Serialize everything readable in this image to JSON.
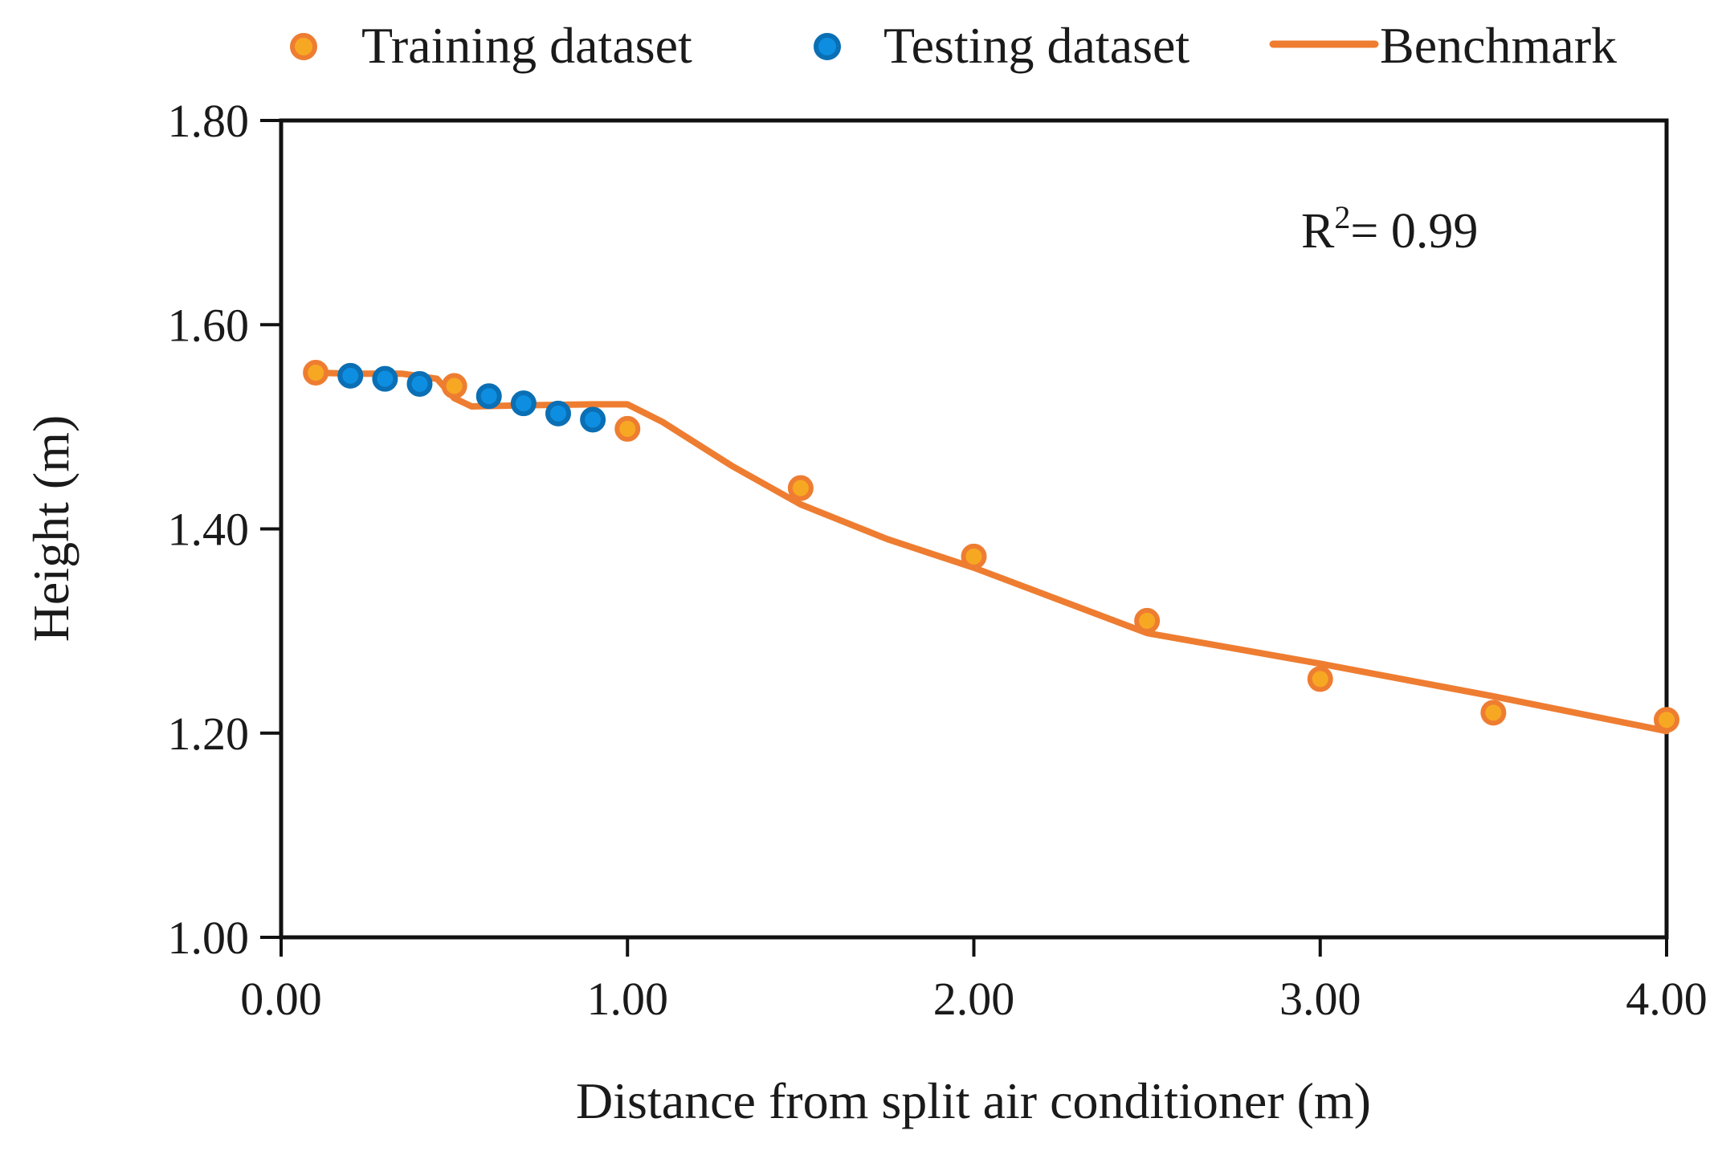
{
  "chart_data": {
    "type": "scatter",
    "xlabel": "Distance from split air conditioner (m)",
    "ylabel": "Height (m)",
    "xlim": [
      0,
      4
    ],
    "ylim": [
      1,
      1.8
    ],
    "xticks": [
      "0.00",
      "1.00",
      "2.00",
      "3.00",
      "4.00"
    ],
    "yticks": [
      "1.00",
      "1.20",
      "1.40",
      "1.60",
      "1.80"
    ],
    "grid": false,
    "legend_position": "top",
    "annotation": {
      "text": "R",
      "sup": "2",
      "rest": "= 0.99"
    },
    "colors": {
      "training_fill": "#f7a823",
      "training_edge": "#ee7d31",
      "testing_fill": "#0e8ee0",
      "testing_edge": "#0a6fb4",
      "benchmark": "#ee7d31"
    },
    "series": [
      {
        "name": "Training dataset",
        "kind": "scatter",
        "x": [
          0.1,
          0.5,
          1.0,
          1.5,
          2.0,
          2.5,
          3.0,
          3.5,
          4.0
        ],
        "y": [
          1.553,
          1.54,
          1.498,
          1.44,
          1.373,
          1.31,
          1.253,
          1.22,
          1.213
        ]
      },
      {
        "name": "Testing dataset",
        "kind": "scatter",
        "x": [
          0.2,
          0.3,
          0.4,
          0.6,
          0.7,
          0.8,
          0.9
        ],
        "y": [
          1.55,
          1.547,
          1.542,
          1.53,
          1.523,
          1.513,
          1.507
        ]
      },
      {
        "name": "Benchmark",
        "kind": "line",
        "x": [
          0.1,
          0.2,
          0.35,
          0.45,
          0.5,
          0.55,
          0.7,
          0.9,
          1.0,
          1.1,
          1.3,
          1.5,
          1.75,
          2.0,
          2.25,
          2.5,
          2.75,
          3.0,
          3.5,
          4.0
        ],
        "y": [
          1.553,
          1.552,
          1.552,
          1.547,
          1.528,
          1.52,
          1.521,
          1.522,
          1.522,
          1.505,
          1.462,
          1.424,
          1.39,
          1.362,
          1.33,
          1.298,
          1.283,
          1.268,
          1.236,
          1.202
        ]
      }
    ]
  }
}
